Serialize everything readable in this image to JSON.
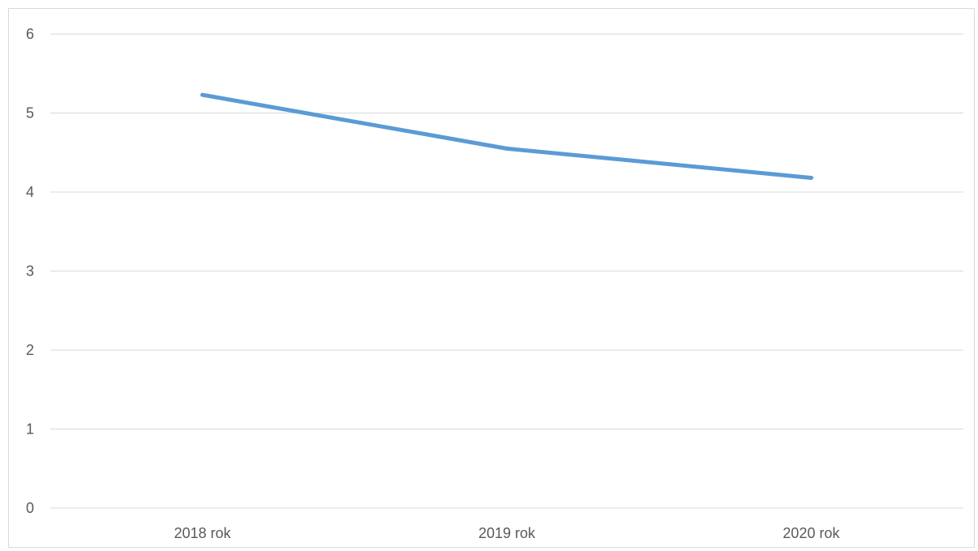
{
  "chart_data": {
    "type": "line",
    "title": "",
    "xlabel": "",
    "ylabel": "",
    "categories": [
      "2018 rok",
      "2019 rok",
      "2020 rok"
    ],
    "series": [
      {
        "values": [
          5.23,
          4.55,
          4.18
        ],
        "color": "#5b9bd5"
      }
    ],
    "ylim": [
      0,
      6
    ],
    "yticks": [
      0,
      1,
      2,
      3,
      4,
      5,
      6
    ],
    "grid": true,
    "legend": "none",
    "colors": {
      "gridline": "#d9d9d9",
      "tick_text": "#595959",
      "frame": "#d9d9d9"
    }
  }
}
